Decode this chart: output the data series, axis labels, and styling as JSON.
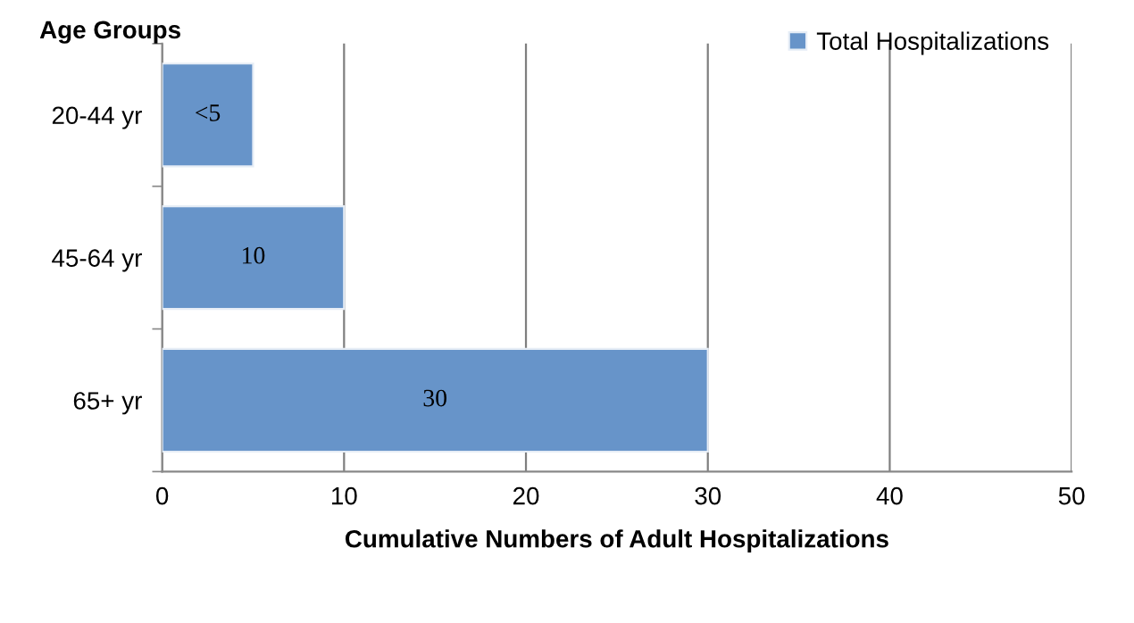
{
  "chart_data": {
    "type": "bar",
    "orientation": "horizontal",
    "ylabel": "Age Groups",
    "xlabel": "Cumulative Numbers of Adult Hospitalizations",
    "categories": [
      "20-44 yr",
      "45-64 yr",
      "65+ yr"
    ],
    "series": [
      {
        "name": "Total Hospitalizations",
        "color": "#6794c9",
        "values": [
          5,
          10,
          30
        ],
        "value_labels": [
          "<5",
          "10",
          "30"
        ]
      }
    ],
    "xlim": [
      0,
      50
    ],
    "xticks": [
      0,
      10,
      20,
      30,
      40,
      50
    ],
    "grid": "x",
    "legend": "top right"
  }
}
